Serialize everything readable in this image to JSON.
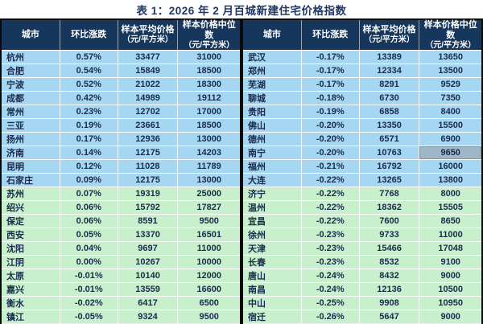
{
  "title": "表 1：2026 年 2 月百城新建住宅价格指数",
  "colors": {
    "title_text": "#1f3864",
    "header_bg": "#16365c",
    "header_text": "#ffffff",
    "row_blue": "#a6d7f2",
    "row_green": "#c9f0cd",
    "highlight_cell": "#9fb6c6",
    "cell_text": "#1a2b4c"
  },
  "columns": {
    "city": "城市",
    "change": "环比涨跌",
    "avg_line1": "样本平均价格",
    "avg_line2": "（元/平方米）",
    "median_line1": "样本价格中位数",
    "median_line2": "（元/平方米）"
  },
  "table": {
    "left_rows": [
      {
        "city": "杭州",
        "change": "0.57%",
        "avg": "33477",
        "median": "31000",
        "group": "blue"
      },
      {
        "city": "合肥",
        "change": "0.54%",
        "avg": "15849",
        "median": "18500",
        "group": "blue"
      },
      {
        "city": "宁波",
        "change": "0.52%",
        "avg": "21022",
        "median": "18300",
        "group": "blue"
      },
      {
        "city": "成都",
        "change": "0.42%",
        "avg": "14989",
        "median": "19112",
        "group": "blue"
      },
      {
        "city": "常州",
        "change": "0.23%",
        "avg": "12702",
        "median": "17000",
        "group": "blue"
      },
      {
        "city": "三亚",
        "change": "0.19%",
        "avg": "23661",
        "median": "18500",
        "group": "blue"
      },
      {
        "city": "扬州",
        "change": "0.17%",
        "avg": "12936",
        "median": "13000",
        "group": "blue"
      },
      {
        "city": "济南",
        "change": "0.14%",
        "avg": "12175",
        "median": "14203",
        "group": "blue"
      },
      {
        "city": "昆明",
        "change": "0.12%",
        "avg": "11028",
        "median": "11789",
        "group": "blue"
      },
      {
        "city": "石家庄",
        "change": "0.09%",
        "avg": "12175",
        "median": "13000",
        "group": "blue"
      },
      {
        "city": "苏州",
        "change": "0.07%",
        "avg": "19319",
        "median": "25000",
        "group": "green"
      },
      {
        "city": "绍兴",
        "change": "0.06%",
        "avg": "15792",
        "median": "17827",
        "group": "green"
      },
      {
        "city": "保定",
        "change": "0.06%",
        "avg": "8591",
        "median": "9500",
        "group": "green"
      },
      {
        "city": "西安",
        "change": "0.05%",
        "avg": "13370",
        "median": "16501",
        "group": "green"
      },
      {
        "city": "沈阳",
        "change": "0.04%",
        "avg": "9697",
        "median": "11000",
        "group": "green"
      },
      {
        "city": "江阴",
        "change": "0.00%",
        "avg": "10267",
        "median": "10000",
        "group": "green"
      },
      {
        "city": "太原",
        "change": "-0.01%",
        "avg": "10140",
        "median": "12000",
        "group": "green"
      },
      {
        "city": "嘉兴",
        "change": "-0.01%",
        "avg": "13559",
        "median": "16600",
        "group": "green"
      },
      {
        "city": "衡水",
        "change": "-0.02%",
        "avg": "6417",
        "median": "6500",
        "group": "green"
      },
      {
        "city": "镇江",
        "change": "-0.05%",
        "avg": "9324",
        "median": "9500",
        "group": "green"
      }
    ],
    "right_rows": [
      {
        "city": "武汉",
        "change": "-0.17%",
        "avg": "13389",
        "median": "13650",
        "group": "blue"
      },
      {
        "city": "郑州",
        "change": "-0.17%",
        "avg": "12334",
        "median": "13500",
        "group": "blue"
      },
      {
        "city": "芜湖",
        "change": "-0.17%",
        "avg": "8291",
        "median": "9529",
        "group": "blue"
      },
      {
        "city": "聊城",
        "change": "-0.18%",
        "avg": "6730",
        "median": "7350",
        "group": "blue"
      },
      {
        "city": "贵阳",
        "change": "-0.19%",
        "avg": "6858",
        "median": "8400",
        "group": "blue"
      },
      {
        "city": "佛山",
        "change": "-0.20%",
        "avg": "13350",
        "median": "15500",
        "group": "blue"
      },
      {
        "city": "德州",
        "change": "-0.20%",
        "avg": "6571",
        "median": "6900",
        "group": "blue"
      },
      {
        "city": "南宁",
        "change": "-0.20%",
        "avg": "10763",
        "median": "9650",
        "group": "blue",
        "hl": true
      },
      {
        "city": "福州",
        "change": "-0.21%",
        "avg": "16792",
        "median": "16000",
        "group": "blue"
      },
      {
        "city": "大连",
        "change": "-0.22%",
        "avg": "13265",
        "median": "13800",
        "group": "blue"
      },
      {
        "city": "济宁",
        "change": "-0.22%",
        "avg": "7768",
        "median": "8000",
        "group": "green"
      },
      {
        "city": "温州",
        "change": "-0.22%",
        "avg": "18362",
        "median": "15505",
        "group": "green"
      },
      {
        "city": "宜昌",
        "change": "-0.22%",
        "avg": "7600",
        "median": "8650",
        "group": "green"
      },
      {
        "city": "徐州",
        "change": "-0.23%",
        "avg": "9733",
        "median": "11000",
        "group": "green"
      },
      {
        "city": "天津",
        "change": "-0.23%",
        "avg": "15466",
        "median": "17048",
        "group": "green"
      },
      {
        "city": "长春",
        "change": "-0.23%",
        "avg": "8532",
        "median": "9100",
        "group": "green"
      },
      {
        "city": "唐山",
        "change": "-0.24%",
        "avg": "8432",
        "median": "9000",
        "group": "green"
      },
      {
        "city": "南昌",
        "change": "-0.24%",
        "avg": "12136",
        "median": "10500",
        "group": "green"
      },
      {
        "city": "中山",
        "change": "-0.25%",
        "avg": "9908",
        "median": "10950",
        "group": "green"
      },
      {
        "city": "宿迁",
        "change": "-0.26%",
        "avg": "5647",
        "median": "9000",
        "group": "green"
      }
    ]
  }
}
